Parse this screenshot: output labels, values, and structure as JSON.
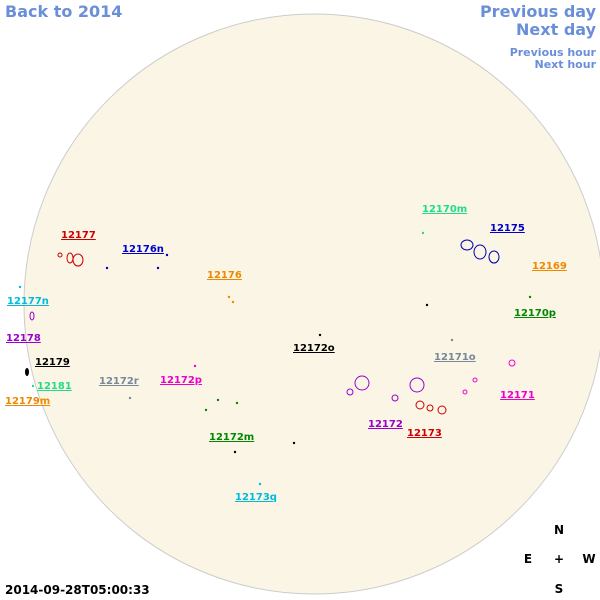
{
  "nav": {
    "back": "Back to 2014",
    "previous_day": "Previous day",
    "next_day": "Next day",
    "previous_hour": "Previous hour",
    "next_hour": "Next hour"
  },
  "regions": [
    "12177",
    "12176n",
    "12176",
    "12177n",
    "12178",
    "12179",
    "12181",
    "12179m",
    "12172r",
    "12172p",
    "12172o",
    "12170m",
    "12175",
    "12169",
    "12170p",
    "12171o",
    "12171",
    "12172",
    "12173",
    "12172m",
    "12173q"
  ],
  "compass": {
    "north": "N",
    "east": "E",
    "center": "+",
    "west": "W",
    "south": "S"
  },
  "timestamp": "2014-09-28T05:00:33"
}
